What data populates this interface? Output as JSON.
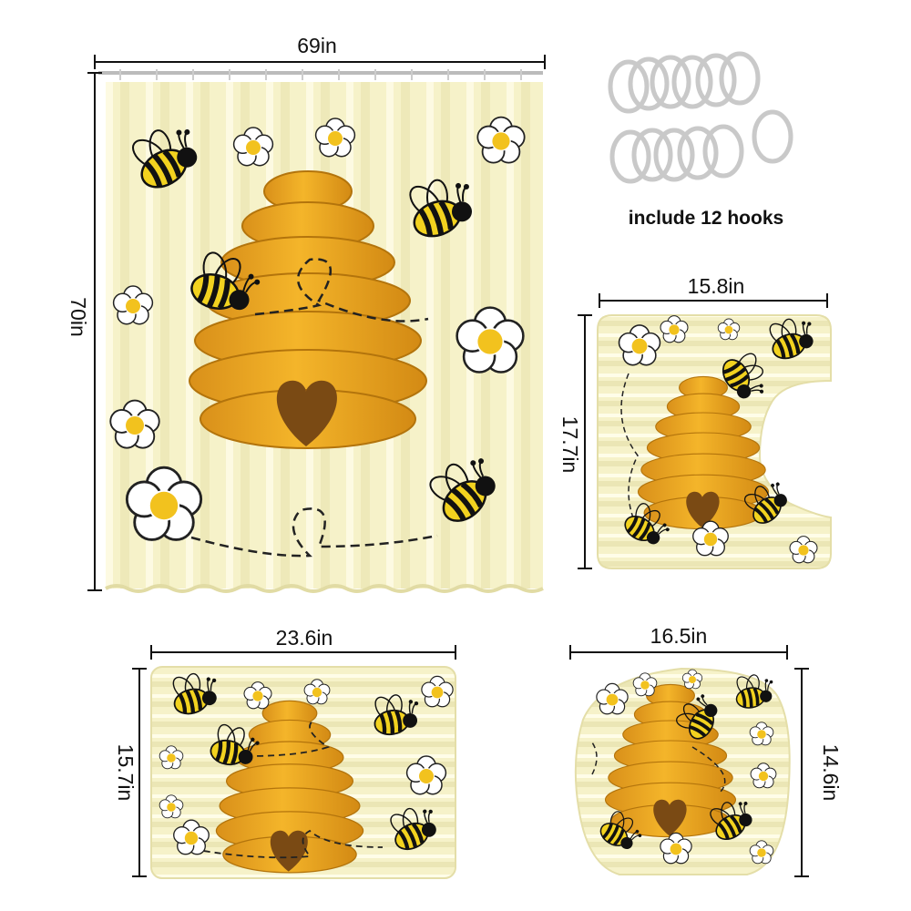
{
  "curtain": {
    "width": "69in",
    "height": "70in"
  },
  "hooks": {
    "caption": "include 12 hooks"
  },
  "contour_mat": {
    "width": "15.8in",
    "height": "17.7in"
  },
  "bath_mat": {
    "width": "23.6in",
    "height": "15.7in"
  },
  "lid_cover": {
    "width": "16.5in",
    "height": "14.6in"
  },
  "colors": {
    "background": "#f6f2c9",
    "hive": "#e9a21a",
    "bee_yellow": "#f2d21f",
    "bee_black": "#1a1a1a",
    "heart": "#7a4a14"
  }
}
